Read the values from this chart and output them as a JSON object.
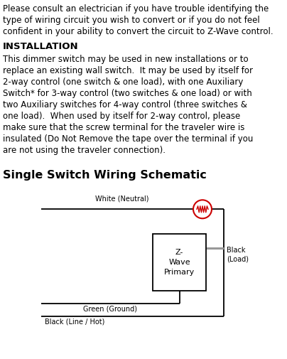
{
  "bg_color": "#ffffff",
  "text_color": "#000000",
  "intro_text": "Please consult an electrician if you have trouble identifying the type of wiring circuit you wish to convert or if you do not feel confident in your ability to convert the circuit to Z-Wave control.",
  "section_title": "INSTALLATION",
  "body_text": "This dimmer switch may be used in new installations or to replace an existing wall switch.  It may be used by itself for 2-way control (one switch & one load), with one Auxiliary Switch* for 3-way control (two switches & one load) or with two Auxiliary switches for 4-way control (three switches & one load).  When used by itself for 2-way control, please make sure that the screw terminal for the traveler wire is insulated (Do Not Remove the tape over the terminal if you are not using the traveler connection).",
  "schematic_title": "Single Switch Wiring Schematic",
  "wire_labels": {
    "white_neutral": "White (Neutral)",
    "green_ground": "Green (Ground)",
    "black_line": "Black (Line / Hot)",
    "black_load": "Black\n(Load)"
  },
  "box_label": "Z-\nWave\nPrimary",
  "line_color": "#000000",
  "load_line_color": "#999999",
  "circle_color": "#cc0000",
  "box_color": "#000000",
  "intro_lines": [
    "Please consult an electrician if you have trouble identifying the",
    "type of wiring circuit you wish to convert or if you do not feel",
    "confident in your ability to convert the circuit to Z-Wave control."
  ],
  "body_lines": [
    "This dimmer switch may be used in new installations or to",
    "replace an existing wall switch.  It may be used by itself for",
    "2-way control (one switch & one load), with one Auxiliary",
    "Switch* for 3-way control (two switches & one load) or with",
    "two Auxiliary switches for 4-way control (three switches &",
    "one load).  When used by itself for 2-way control, please",
    "make sure that the screw terminal for the traveler wire is",
    "insulated (Do Not Remove the tape over the terminal if you",
    "are not using the traveler connection)."
  ]
}
